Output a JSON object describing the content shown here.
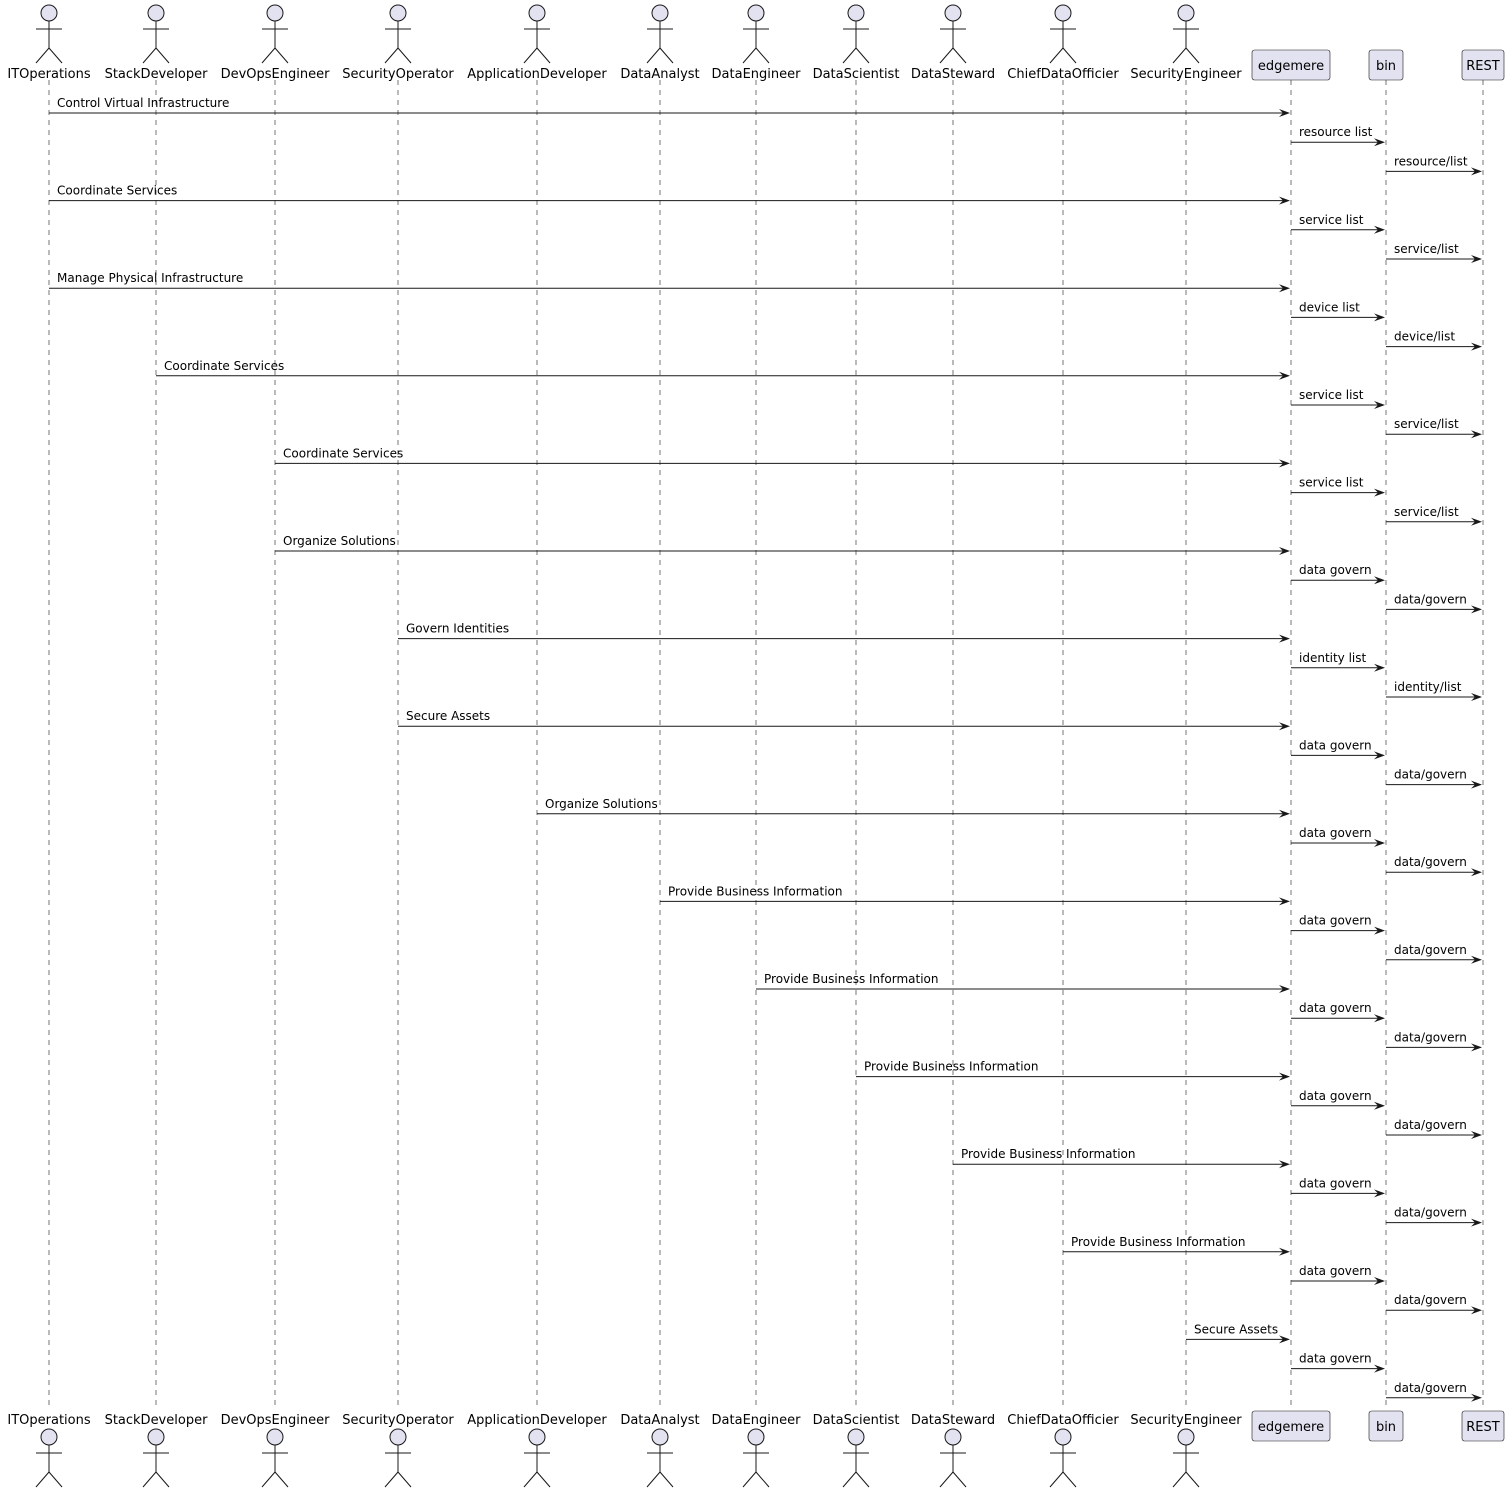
{
  "participants": [
    {
      "id": "ITOperations",
      "label": "ITOperations",
      "kind": "actor"
    },
    {
      "id": "StackDeveloper",
      "label": "StackDeveloper",
      "kind": "actor"
    },
    {
      "id": "DevOpsEngineer",
      "label": "DevOpsEngineer",
      "kind": "actor"
    },
    {
      "id": "SecurityOperator",
      "label": "SecurityOperator",
      "kind": "actor"
    },
    {
      "id": "ApplicationDeveloper",
      "label": "ApplicationDeveloper",
      "kind": "actor"
    },
    {
      "id": "DataAnalyst",
      "label": "DataAnalyst",
      "kind": "actor"
    },
    {
      "id": "DataEngineer",
      "label": "DataEngineer",
      "kind": "actor"
    },
    {
      "id": "DataScientist",
      "label": "DataScientist",
      "kind": "actor"
    },
    {
      "id": "DataSteward",
      "label": "DataSteward",
      "kind": "actor"
    },
    {
      "id": "ChiefDataOfficier",
      "label": "ChiefDataOfficier",
      "kind": "actor"
    },
    {
      "id": "SecurityEngineer",
      "label": "SecurityEngineer",
      "kind": "actor"
    },
    {
      "id": "edgemere",
      "label": "edgemere",
      "kind": "participant"
    },
    {
      "id": "bin",
      "label": "bin",
      "kind": "participant"
    },
    {
      "id": "REST",
      "label": "REST",
      "kind": "participant"
    }
  ],
  "messages": [
    {
      "from": "ITOperations",
      "to": "edgemere",
      "label": "Control Virtual Infrastructure"
    },
    {
      "from": "edgemere",
      "to": "bin",
      "label": "resource list"
    },
    {
      "from": "bin",
      "to": "REST",
      "label": "resource/list"
    },
    {
      "from": "ITOperations",
      "to": "edgemere",
      "label": "Coordinate Services"
    },
    {
      "from": "edgemere",
      "to": "bin",
      "label": "service list"
    },
    {
      "from": "bin",
      "to": "REST",
      "label": "service/list"
    },
    {
      "from": "ITOperations",
      "to": "edgemere",
      "label": "Manage Physical Infrastructure"
    },
    {
      "from": "edgemere",
      "to": "bin",
      "label": "device list"
    },
    {
      "from": "bin",
      "to": "REST",
      "label": "device/list"
    },
    {
      "from": "StackDeveloper",
      "to": "edgemere",
      "label": "Coordinate Services"
    },
    {
      "from": "edgemere",
      "to": "bin",
      "label": "service list"
    },
    {
      "from": "bin",
      "to": "REST",
      "label": "service/list"
    },
    {
      "from": "DevOpsEngineer",
      "to": "edgemere",
      "label": "Coordinate Services"
    },
    {
      "from": "edgemere",
      "to": "bin",
      "label": "service list"
    },
    {
      "from": "bin",
      "to": "REST",
      "label": "service/list"
    },
    {
      "from": "DevOpsEngineer",
      "to": "edgemere",
      "label": "Organize Solutions"
    },
    {
      "from": "edgemere",
      "to": "bin",
      "label": "data govern"
    },
    {
      "from": "bin",
      "to": "REST",
      "label": "data/govern"
    },
    {
      "from": "SecurityOperator",
      "to": "edgemere",
      "label": "Govern Identities"
    },
    {
      "from": "edgemere",
      "to": "bin",
      "label": "identity list"
    },
    {
      "from": "bin",
      "to": "REST",
      "label": "identity/list"
    },
    {
      "from": "SecurityOperator",
      "to": "edgemere",
      "label": "Secure Assets"
    },
    {
      "from": "edgemere",
      "to": "bin",
      "label": "data govern"
    },
    {
      "from": "bin",
      "to": "REST",
      "label": "data/govern"
    },
    {
      "from": "ApplicationDeveloper",
      "to": "edgemere",
      "label": "Organize Solutions"
    },
    {
      "from": "edgemere",
      "to": "bin",
      "label": "data govern"
    },
    {
      "from": "bin",
      "to": "REST",
      "label": "data/govern"
    },
    {
      "from": "DataAnalyst",
      "to": "edgemere",
      "label": "Provide Business Information"
    },
    {
      "from": "edgemere",
      "to": "bin",
      "label": "data govern"
    },
    {
      "from": "bin",
      "to": "REST",
      "label": "data/govern"
    },
    {
      "from": "DataEngineer",
      "to": "edgemere",
      "label": "Provide Business Information"
    },
    {
      "from": "edgemere",
      "to": "bin",
      "label": "data govern"
    },
    {
      "from": "bin",
      "to": "REST",
      "label": "data/govern"
    },
    {
      "from": "DataScientist",
      "to": "edgemere",
      "label": "Provide Business Information"
    },
    {
      "from": "edgemere",
      "to": "bin",
      "label": "data govern"
    },
    {
      "from": "bin",
      "to": "REST",
      "label": "data/govern"
    },
    {
      "from": "DataSteward",
      "to": "edgemere",
      "label": "Provide Business Information"
    },
    {
      "from": "edgemere",
      "to": "bin",
      "label": "data govern"
    },
    {
      "from": "bin",
      "to": "REST",
      "label": "data/govern"
    },
    {
      "from": "ChiefDataOfficier",
      "to": "edgemere",
      "label": "Provide Business Information"
    },
    {
      "from": "edgemere",
      "to": "bin",
      "label": "data govern"
    },
    {
      "from": "bin",
      "to": "REST",
      "label": "data/govern"
    },
    {
      "from": "SecurityEngineer",
      "to": "edgemere",
      "label": "Secure Assets"
    },
    {
      "from": "edgemere",
      "to": "bin",
      "label": "data govern"
    },
    {
      "from": "bin",
      "to": "REST",
      "label": "data/govern"
    }
  ],
  "colors": {
    "participant_fill": "#e2e2f0",
    "stroke": "#181818",
    "lifeline": "#555555",
    "background": "#ffffff"
  }
}
